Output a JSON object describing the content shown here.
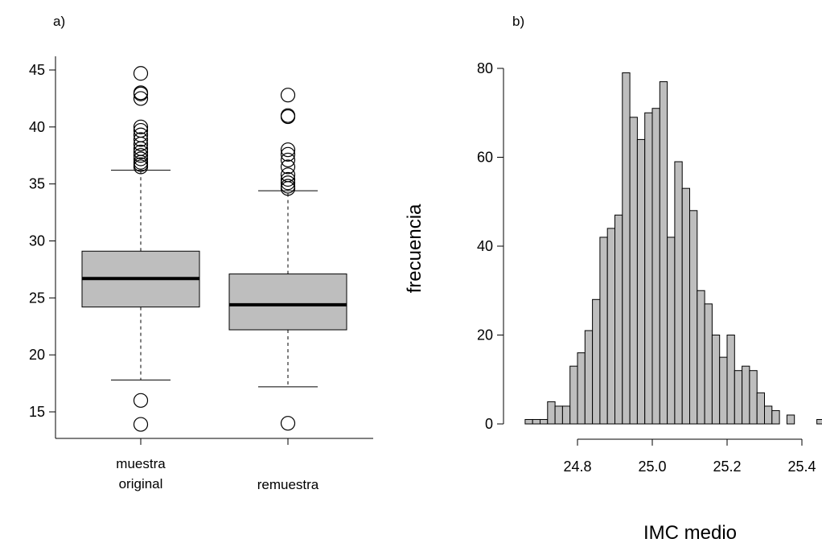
{
  "chart_data": [
    {
      "type": "box",
      "panel_label": "a)",
      "title": "",
      "xlabel": "",
      "ylabel": "",
      "ylim": [
        13,
        46
      ],
      "y_ticks": [
        15,
        20,
        25,
        30,
        35,
        40,
        45
      ],
      "fill_color": "#bebebe",
      "categories": [
        {
          "label_lines": [
            "muestra",
            "original"
          ]
        },
        {
          "label_lines": [
            "remuestra"
          ]
        }
      ],
      "boxes": [
        {
          "whisker_low": 17.8,
          "q1": 24.2,
          "median": 26.7,
          "q3": 29.1,
          "whisker_high": 36.2,
          "outliers": [
            13.9,
            16.0,
            36.5,
            36.7,
            36.9,
            37.2,
            37.5,
            37.8,
            38.1,
            38.5,
            38.9,
            39.3,
            39.7,
            40.0,
            42.5,
            42.9,
            43.0,
            44.7
          ]
        },
        {
          "whisker_low": 17.2,
          "q1": 22.2,
          "median": 24.4,
          "q3": 27.1,
          "whisker_high": 34.4,
          "outliers": [
            14.0,
            34.6,
            34.8,
            35.1,
            35.4,
            35.8,
            36.5,
            37.1,
            37.6,
            38.0,
            40.9,
            41.0,
            42.8
          ]
        }
      ]
    },
    {
      "type": "histogram",
      "panel_label": "b)",
      "title": "",
      "xlabel": "IMC medio",
      "ylabel": "frecuencia",
      "ylim": [
        0,
        80
      ],
      "y_ticks": [
        0,
        20,
        40,
        60,
        80
      ],
      "x_ticks": [
        "24.8",
        "25.0",
        "25.2",
        "25.4"
      ],
      "xlim": [
        24.66,
        25.46
      ],
      "bin_start": 24.66,
      "bin_width": 0.02,
      "fill_color": "#bebebe",
      "counts": [
        1,
        1,
        1,
        5,
        4,
        4,
        13,
        16,
        21,
        28,
        42,
        44,
        47,
        79,
        69,
        64,
        70,
        71,
        77,
        42,
        59,
        53,
        48,
        30,
        27,
        20,
        15,
        20,
        12,
        13,
        12,
        7,
        4,
        3,
        0,
        2,
        0,
        0,
        0,
        1
      ]
    }
  ]
}
